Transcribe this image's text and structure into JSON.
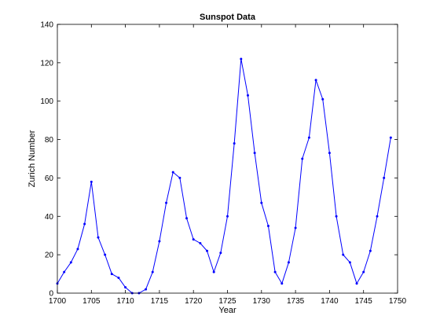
{
  "chart_data": {
    "type": "line",
    "title": "Sunspot Data",
    "xlabel": "Year",
    "ylabel": "Zurich Number",
    "xlim": [
      1700,
      1750
    ],
    "ylim": [
      0,
      140
    ],
    "xticks": [
      1700,
      1705,
      1710,
      1715,
      1720,
      1725,
      1730,
      1735,
      1740,
      1745,
      1750
    ],
    "yticks": [
      0,
      20,
      40,
      60,
      80,
      100,
      120,
      140
    ],
    "grid": false,
    "series": [
      {
        "color": "#0000ff",
        "marker": "dot",
        "points": [
          [
            1700,
            5
          ],
          [
            1701,
            11
          ],
          [
            1702,
            16
          ],
          [
            1703,
            23
          ],
          [
            1704,
            36
          ],
          [
            1705,
            58
          ],
          [
            1706,
            29
          ],
          [
            1707,
            20
          ],
          [
            1708,
            10
          ],
          [
            1709,
            8
          ],
          [
            1710,
            3
          ],
          [
            1711,
            0
          ],
          [
            1712,
            0
          ],
          [
            1713,
            2
          ],
          [
            1714,
            11
          ],
          [
            1715,
            27
          ],
          [
            1716,
            47
          ],
          [
            1717,
            63
          ],
          [
            1718,
            60
          ],
          [
            1719,
            39
          ],
          [
            1720,
            28
          ],
          [
            1721,
            26
          ],
          [
            1722,
            22
          ],
          [
            1723,
            11
          ],
          [
            1724,
            21
          ],
          [
            1725,
            40
          ],
          [
            1726,
            78
          ],
          [
            1727,
            122
          ],
          [
            1728,
            103
          ],
          [
            1729,
            73
          ],
          [
            1730,
            47
          ],
          [
            1731,
            35
          ],
          [
            1732,
            11
          ],
          [
            1733,
            5
          ],
          [
            1734,
            16
          ],
          [
            1735,
            34
          ],
          [
            1736,
            70
          ],
          [
            1737,
            81
          ],
          [
            1738,
            111
          ],
          [
            1739,
            101
          ],
          [
            1740,
            73
          ],
          [
            1741,
            40
          ],
          [
            1742,
            20
          ],
          [
            1743,
            16
          ],
          [
            1744,
            5
          ],
          [
            1745,
            11
          ],
          [
            1746,
            22
          ],
          [
            1747,
            40
          ],
          [
            1748,
            60
          ],
          [
            1749,
            81
          ]
        ]
      }
    ]
  }
}
